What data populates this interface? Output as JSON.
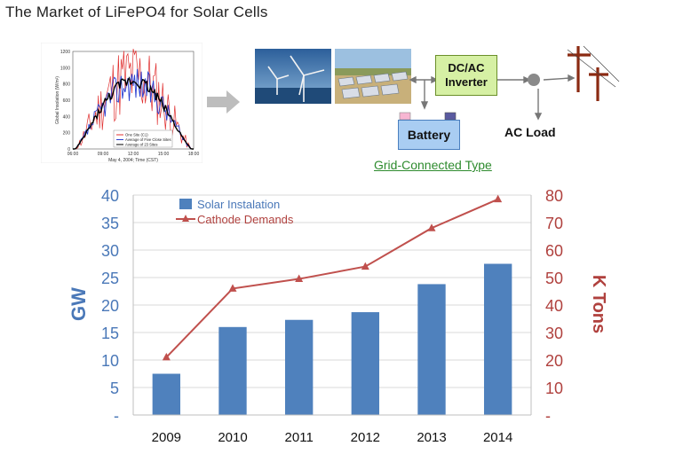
{
  "title": "The Market of LiFePO4 for Solar Cells",
  "diagram": {
    "dcac_label": "DC/AC Inverter",
    "battery_label": "Battery",
    "ac_load_label": "AC Load",
    "grid_type_label": "Grid-Connected Type"
  },
  "inset_chart": {
    "ylabel": "Global Insolation (W/m²)",
    "xlabel": "May 4, 2004; Time (CST)",
    "yticks": [
      "0",
      "200",
      "400",
      "600",
      "800",
      "1000",
      "1200"
    ],
    "xticks": [
      "06:00",
      "09:00",
      "12:00",
      "15:00",
      "18:00"
    ],
    "legend": [
      "One Site (C1)",
      "Average of Five Close Sites",
      "Average of 23 Sites"
    ],
    "colors": [
      "#e03030",
      "#2a3fd0",
      "#000000"
    ]
  },
  "chart_data": {
    "type": "bar",
    "categories": [
      "2009",
      "2010",
      "2011",
      "2012",
      "2013",
      "2014"
    ],
    "series": [
      {
        "name": "Solar Instalation",
        "type": "bar",
        "axis": "left",
        "color": "#4f81bd",
        "values": [
          7.5,
          16,
          17.3,
          18.7,
          23.8,
          27.5
        ]
      },
      {
        "name": "Cathode Demands",
        "type": "line",
        "axis": "right",
        "color": "#c0504d",
        "values": [
          21,
          46,
          49.5,
          54,
          68,
          78.5
        ]
      }
    ],
    "ylabel_left": "GW",
    "ylabel_right": "K Tons",
    "ylim_left": [
      0,
      40
    ],
    "ylim_right": [
      0,
      80
    ],
    "yticks_left": [
      "-",
      "5",
      "10",
      "15",
      "20",
      "25",
      "30",
      "35",
      "40"
    ],
    "yticks_right": [
      "-",
      "10",
      "20",
      "30",
      "40",
      "50",
      "60",
      "70",
      "80"
    ],
    "grid": true,
    "legend_position": "top-left"
  }
}
